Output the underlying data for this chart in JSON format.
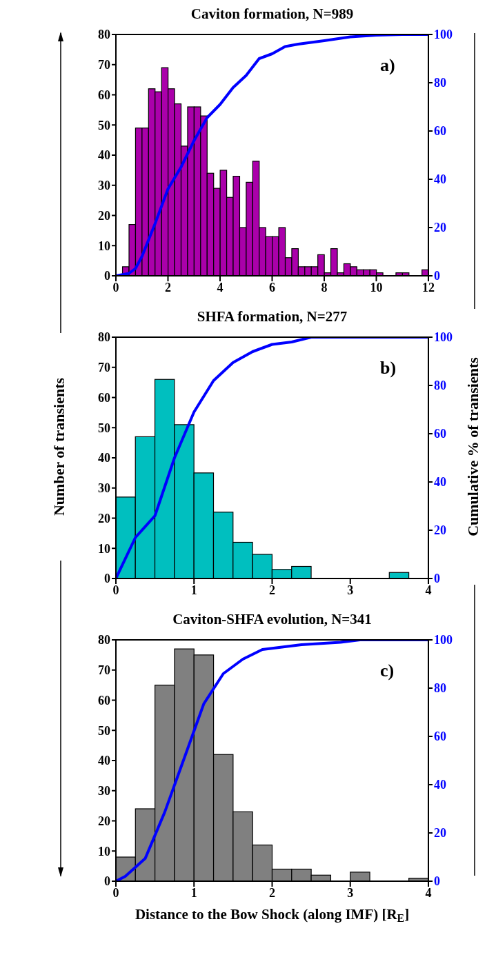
{
  "chart_data": [
    {
      "type": "histogram",
      "title": "Caviton formation, N=989",
      "annotations": [
        "a)"
      ],
      "bins": [
        0,
        0.25,
        0.5,
        0.75,
        1,
        1.25,
        1.5,
        1.75,
        2,
        2.25,
        2.5,
        2.75,
        3,
        3.25,
        3.5,
        3.75,
        4,
        4.25,
        4.5,
        4.75,
        5,
        5.25,
        5.5,
        5.75,
        6,
        6.25,
        6.5,
        6.75,
        7,
        7.25,
        7.5,
        7.75,
        8,
        8.25,
        8.5,
        8.75,
        9,
        9.25,
        9.5,
        9.75,
        10,
        10.25,
        10.5,
        10.75,
        11,
        11.25,
        11.5,
        11.75,
        12
      ],
      "series": [
        {
          "type": "histogram",
          "color": "#aa00aa",
          "values": [
            0,
            3,
            17,
            49,
            49,
            62,
            61,
            69,
            62,
            57,
            43,
            56,
            56,
            53,
            34,
            29,
            35,
            26,
            33,
            16,
            31,
            38,
            16,
            13,
            13,
            16,
            6,
            9,
            3,
            3,
            3,
            7,
            1,
            9,
            1,
            4,
            3,
            2,
            2,
            2,
            1,
            0,
            0,
            1,
            1,
            0,
            0,
            2
          ]
        },
        {
          "type": "line",
          "axis": "y2",
          "color": "#0000ff",
          "x": [
            0,
            0.5,
            0.75,
            1,
            1.5,
            2,
            2.5,
            3,
            3.5,
            4,
            4.5,
            5,
            5.5,
            6,
            6.5,
            7,
            8,
            9,
            10,
            11,
            12
          ],
          "values": [
            0,
            1,
            3,
            8,
            21.5,
            36,
            45,
            56,
            65.5,
            71,
            78,
            83,
            90,
            92,
            95,
            96,
            97.4,
            99,
            99.7,
            100,
            100
          ]
        }
      ],
      "xlim": [
        0,
        12
      ],
      "xticks": [
        0,
        2,
        4,
        6,
        8,
        10,
        12
      ],
      "ylim": [
        0,
        80
      ],
      "yticks": [
        0,
        10,
        20,
        30,
        40,
        50,
        60,
        70,
        80
      ],
      "y2lim": [
        0,
        100
      ],
      "y2ticks": [
        0,
        20,
        40,
        60,
        80,
        100
      ],
      "marker": "none",
      "grid": false,
      "legend": false
    },
    {
      "type": "histogram",
      "title": "SHFA formation, N=277",
      "annotations": [
        "b)"
      ],
      "ylabel": "Number of transients",
      "y2label": "Cumulative % of transients",
      "bins": [
        0,
        0.25,
        0.5,
        0.75,
        1,
        1.25,
        1.5,
        1.75,
        2,
        2.25,
        2.5,
        2.75,
        3,
        3.25,
        3.5,
        3.75,
        4
      ],
      "series": [
        {
          "type": "histogram",
          "color": "#00bfbf",
          "values": [
            27,
            47,
            66,
            51,
            35,
            22,
            12,
            8,
            3,
            4,
            0,
            0,
            0,
            0,
            2,
            0
          ]
        },
        {
          "type": "line",
          "axis": "y2",
          "color": "#0000ff",
          "x": [
            0,
            0.25,
            0.5,
            0.75,
            1,
            1.25,
            1.5,
            1.75,
            2,
            2.25,
            2.5,
            3,
            3.5,
            4
          ],
          "values": [
            0,
            17,
            26,
            50,
            69,
            82,
            89.5,
            94,
            97,
            98,
            100,
            100,
            100,
            100
          ]
        }
      ],
      "xlim": [
        0,
        4
      ],
      "xticks": [
        0,
        1,
        2,
        3,
        4
      ],
      "ylim": [
        0,
        80
      ],
      "yticks": [
        0,
        10,
        20,
        30,
        40,
        50,
        60,
        70,
        80
      ],
      "y2lim": [
        0,
        100
      ],
      "y2ticks": [
        0,
        20,
        40,
        60,
        80,
        100
      ],
      "marker": "none",
      "grid": false,
      "legend": false
    },
    {
      "type": "histogram",
      "title": "Caviton-SHFA evolution, N=341",
      "annotations": [
        "c)"
      ],
      "xlabel": "Distance to the Bow Shock (along IMF) [R$_{E}$]",
      "bins": [
        0,
        0.25,
        0.5,
        0.75,
        1,
        1.25,
        1.5,
        1.75,
        2,
        2.25,
        2.5,
        2.75,
        3,
        3.25,
        3.5,
        3.75,
        4
      ],
      "series": [
        {
          "type": "histogram",
          "color": "#808080",
          "values": [
            8,
            24,
            65,
            77,
            75,
            42,
            23,
            12,
            4,
            4,
            2,
            0,
            3,
            0,
            0,
            1
          ]
        },
        {
          "type": "line",
          "axis": "y2",
          "color": "#0000ff",
          "x": [
            0,
            0.12,
            0.375,
            0.625,
            0.875,
            1.125,
            1.375,
            1.625,
            1.875,
            2.375,
            2.875,
            3.125,
            4
          ],
          "values": [
            0,
            2,
            9.4,
            28.6,
            51,
            73.5,
            86,
            92,
            96,
            98,
            99,
            100,
            100
          ]
        }
      ],
      "xlim": [
        0,
        4
      ],
      "xticks": [
        0,
        1,
        2,
        3,
        4
      ],
      "ylim": [
        0,
        80
      ],
      "yticks": [
        0,
        10,
        20,
        30,
        40,
        50,
        60,
        70,
        80
      ],
      "y2lim": [
        0,
        100
      ],
      "y2ticks": [
        0,
        20,
        40,
        60,
        80,
        100
      ],
      "marker": "none",
      "grid": false,
      "legend": false
    }
  ]
}
